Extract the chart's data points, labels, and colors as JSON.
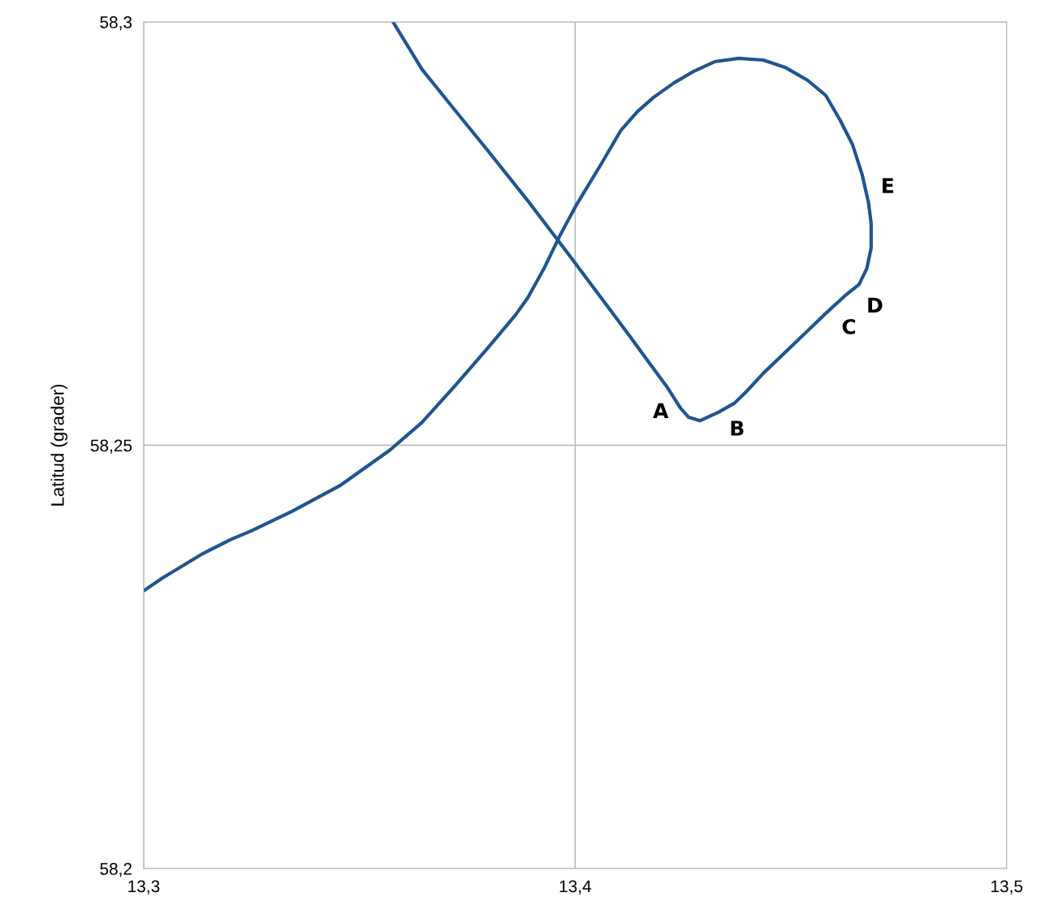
{
  "chart_data": {
    "type": "line",
    "ylabel": "Latitud (grader)",
    "x": [
      13.3,
      13.3043,
      13.3137,
      13.3203,
      13.325,
      13.3344,
      13.3457,
      13.357,
      13.3645,
      13.3721,
      13.3796,
      13.3862,
      13.389,
      13.3928,
      13.3965,
      13.4003,
      13.4059,
      13.4106,
      13.4144,
      13.4182,
      13.4229,
      13.4276,
      13.4323,
      13.4379,
      13.4436,
      13.4488,
      13.4539,
      13.4581,
      13.4614,
      13.4643,
      13.4665,
      13.468,
      13.4686,
      13.4686,
      13.4676,
      13.4658,
      13.4624,
      13.4577,
      13.453,
      13.4483,
      13.4436,
      13.4398,
      13.437,
      13.4332,
      13.4289,
      13.4263,
      13.4244,
      13.4214,
      13.4172,
      13.4125,
      13.4078,
      13.3984,
      13.389,
      13.3796,
      13.3721,
      13.3645,
      13.3578
    ],
    "series": [
      {
        "color": "#1f5590",
        "values": [
          58.2328,
          58.2343,
          58.2372,
          58.2389,
          58.2399,
          58.2422,
          58.2453,
          58.2494,
          58.2527,
          58.257,
          58.2614,
          58.2654,
          58.2674,
          58.2709,
          58.2748,
          58.2784,
          58.2831,
          58.2872,
          58.2894,
          58.2911,
          58.2928,
          58.2942,
          58.2953,
          58.2957,
          58.2955,
          58.2946,
          58.2931,
          58.2913,
          58.2884,
          58.2855,
          58.282,
          58.2786,
          58.2762,
          58.2733,
          58.2709,
          58.269,
          58.2676,
          58.2654,
          58.2631,
          58.2608,
          58.2585,
          58.2564,
          58.255,
          58.2539,
          58.2529,
          58.2533,
          58.2544,
          58.2568,
          58.2597,
          58.263,
          58.2662,
          58.2726,
          58.2789,
          58.2849,
          58.2896,
          58.2944,
          58.3
        ]
      }
    ],
    "xlim": [
      13.3,
      13.5
    ],
    "ylim": [
      58.2,
      58.3
    ],
    "xticks": [
      {
        "value": 13.3,
        "label": "13,3"
      },
      {
        "value": 13.4,
        "label": "13,4"
      },
      {
        "value": 13.5,
        "label": "13,5"
      }
    ],
    "yticks": [
      {
        "value": 58.2,
        "label": "58,2"
      },
      {
        "value": 58.25,
        "label": "58,25"
      },
      {
        "value": 58.3,
        "label": "58,3"
      }
    ],
    "grid": true,
    "marker": "none",
    "line_style": "solid",
    "annotations": [
      {
        "text": "A",
        "x": 13.4214,
        "y": 58.2568
      },
      {
        "text": "B",
        "x": 13.437,
        "y": 58.255
      },
      {
        "text": "C",
        "x": 13.4577,
        "y": 58.2654
      },
      {
        "text": "D",
        "x": 13.4658,
        "y": 58.269
      },
      {
        "text": "E",
        "x": 13.468,
        "y": 58.2786
      }
    ]
  }
}
